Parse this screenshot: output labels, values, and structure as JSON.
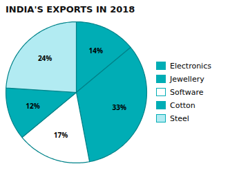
{
  "chart_data": {
    "type": "pie",
    "title": "INDIA'S EXPORTS IN 2018",
    "categories": [
      "Electronics",
      "Jewellery",
      "Software",
      "Cotton",
      "Steel"
    ],
    "values": [
      14,
      33,
      17,
      12,
      24
    ],
    "value_labels": [
      "14%",
      "33%",
      "17%",
      "12%",
      "24%"
    ],
    "colors": [
      "#00adb5",
      "#00adb5",
      "#ffffff",
      "#00adb5",
      "#b2ebf2"
    ],
    "data_labels": true,
    "legend": "right"
  }
}
